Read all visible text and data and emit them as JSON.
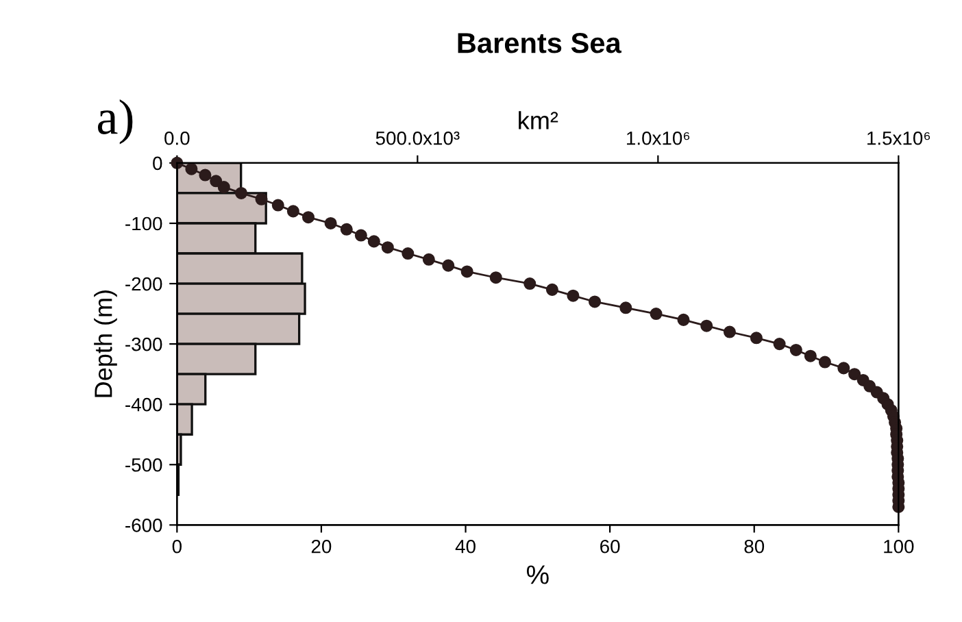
{
  "chart_data": {
    "type": "line",
    "orientation": "horizontal",
    "title": "Barents Sea",
    "xlabel": "%",
    "ylabel": "Depth (m)",
    "x2label": "km²",
    "annotations": [
      "a)"
    ],
    "xlim": [
      0,
      100
    ],
    "xticks": [
      0,
      20,
      40,
      60,
      80,
      100
    ],
    "ylim": [
      -600,
      0
    ],
    "yticks": [
      -600,
      -500,
      -400,
      -300,
      -200,
      -100,
      0
    ],
    "x2lim": [
      0,
      1500000
    ],
    "x2ticks": [
      {
        "value": 0,
        "label": "0.0"
      },
      {
        "value": 500000,
        "label": "500.0x10³"
      },
      {
        "value": 1000000,
        "label": "1.0x10⁶"
      },
      {
        "value": 1500000,
        "label": "1.5x10⁶"
      }
    ],
    "grid": false,
    "legend": false,
    "series": [
      {
        "type": "histogram",
        "axis": "x2",
        "color": "#c9bcb9",
        "bins": [
          0,
          -50,
          -100,
          -150,
          -200,
          -250,
          -300,
          -350,
          -400,
          -450,
          -500,
          -550
        ],
        "values": [
          133000,
          185000,
          163000,
          260000,
          266000,
          254000,
          163000,
          59000,
          31000,
          8000,
          3000
        ]
      },
      {
        "color": "#2b1b1b",
        "marker": "circle",
        "line_style": "solid",
        "values": [
          0,
          2.0,
          3.9,
          5.4,
          6.5,
          8.9,
          11.7,
          14.0,
          16.1,
          18.2,
          21.3,
          23.5,
          25.5,
          27.3,
          29.2,
          32.0,
          34.9,
          37.6,
          40.2,
          44.2,
          48.9,
          52.0,
          54.9,
          57.9,
          62.2,
          66.4,
          70.2,
          73.4,
          76.6,
          80.3,
          83.5,
          85.8,
          87.8,
          89.8,
          92.4,
          93.9,
          95.1,
          96.0,
          97.0,
          97.9,
          98.5,
          99.0,
          99.3,
          99.5,
          99.7,
          99.7,
          99.8,
          99.8,
          99.8,
          99.9,
          99.9,
          99.9,
          99.9,
          100,
          100,
          100,
          100,
          100
        ],
        "x": [
          0,
          -10,
          -20,
          -30,
          -40,
          -50,
          -60,
          -70,
          -80,
          -90,
          -100,
          -110,
          -120,
          -130,
          -140,
          -150,
          -160,
          -170,
          -180,
          -190,
          -200,
          -210,
          -220,
          -230,
          -240,
          -250,
          -260,
          -270,
          -280,
          -290,
          -300,
          -310,
          -320,
          -330,
          -340,
          -350,
          -360,
          -370,
          -380,
          -390,
          -400,
          -410,
          -420,
          -430,
          -440,
          -450,
          -460,
          -470,
          -480,
          -490,
          -500,
          -510,
          -520,
          -530,
          -540,
          -550,
          -560,
          -570
        ]
      }
    ]
  }
}
